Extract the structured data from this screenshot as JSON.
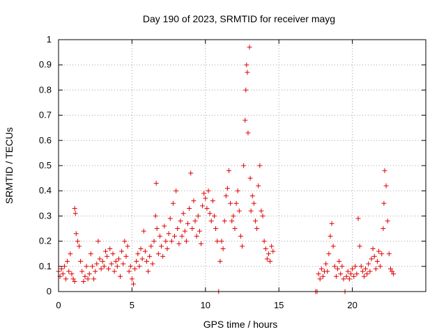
{
  "chart_data": {
    "type": "scatter",
    "title": "Day 190 of 2023, SRMTID for receiver mayg",
    "xlabel": "GPS time / hours",
    "ylabel": "SRMTID / TECUs",
    "xlim": [
      0,
      25
    ],
    "ylim": [
      0,
      1
    ],
    "xticks": [
      0,
      5,
      10,
      15,
      20
    ],
    "xtick_labels": [
      "0",
      "5",
      "10",
      "15",
      "20"
    ],
    "yticks": [
      0,
      0.1,
      0.2,
      0.3,
      0.4,
      0.5,
      0.6,
      0.7,
      0.8,
      0.9,
      1
    ],
    "ytick_labels": [
      "0",
      "0.1",
      "0.2",
      "0.3",
      "0.4",
      "0.5",
      "0.6",
      "0.7",
      "0.8",
      "0.9",
      "1"
    ],
    "grid": true,
    "marker": "+",
    "color": "#e00000",
    "series": [
      {
        "name": "SRMTID",
        "points": [
          [
            0.0,
            0.08
          ],
          [
            0.1,
            0.06
          ],
          [
            0.2,
            0.09
          ],
          [
            0.3,
            0.07
          ],
          [
            0.4,
            0.1
          ],
          [
            0.5,
            0.05
          ],
          [
            0.6,
            0.12
          ],
          [
            0.7,
            0.08
          ],
          [
            0.8,
            0.15
          ],
          [
            0.9,
            0.07
          ],
          [
            1.0,
            0.05
          ],
          [
            1.1,
            0.04
          ],
          [
            1.1,
            0.33
          ],
          [
            1.15,
            0.31
          ],
          [
            1.2,
            0.23
          ],
          [
            1.3,
            0.2
          ],
          [
            1.4,
            0.18
          ],
          [
            1.5,
            0.12
          ],
          [
            1.6,
            0.08
          ],
          [
            1.7,
            0.04
          ],
          [
            1.8,
            0.06
          ],
          [
            1.9,
            0.1
          ],
          [
            2.0,
            0.05
          ],
          [
            2.1,
            0.07
          ],
          [
            2.2,
            0.15
          ],
          [
            2.3,
            0.1
          ],
          [
            2.4,
            0.05
          ],
          [
            2.5,
            0.08
          ],
          [
            2.6,
            0.11
          ],
          [
            2.7,
            0.2
          ],
          [
            2.8,
            0.13
          ],
          [
            2.9,
            0.09
          ],
          [
            3.0,
            0.12
          ],
          [
            3.1,
            0.1
          ],
          [
            3.2,
            0.16
          ],
          [
            3.3,
            0.14
          ],
          [
            3.4,
            0.09
          ],
          [
            3.5,
            0.17
          ],
          [
            3.6,
            0.11
          ],
          [
            3.7,
            0.15
          ],
          [
            3.8,
            0.08
          ],
          [
            3.9,
            0.12
          ],
          [
            4.0,
            0.1
          ],
          [
            4.1,
            0.13
          ],
          [
            4.2,
            0.06
          ],
          [
            4.3,
            0.16
          ],
          [
            4.4,
            0.11
          ],
          [
            4.5,
            0.2
          ],
          [
            4.6,
            0.14
          ],
          [
            4.7,
            0.18
          ],
          [
            4.8,
            0.08
          ],
          [
            4.9,
            0.1
          ],
          [
            5.0,
            0.05
          ],
          [
            5.1,
            0.03
          ],
          [
            5.2,
            0.09
          ],
          [
            5.3,
            0.12
          ],
          [
            5.4,
            0.15
          ],
          [
            5.5,
            0.1
          ],
          [
            5.6,
            0.17
          ],
          [
            5.7,
            0.13
          ],
          [
            5.8,
            0.24
          ],
          [
            5.9,
            0.16
          ],
          [
            6.0,
            0.12
          ],
          [
            6.1,
            0.08
          ],
          [
            6.2,
            0.14
          ],
          [
            6.3,
            0.18
          ],
          [
            6.4,
            0.11
          ],
          [
            6.5,
            0.2
          ],
          [
            6.6,
            0.3
          ],
          [
            6.65,
            0.43
          ],
          [
            6.7,
            0.25
          ],
          [
            6.8,
            0.15
          ],
          [
            6.9,
            0.22
          ],
          [
            7.0,
            0.18
          ],
          [
            7.1,
            0.14
          ],
          [
            7.2,
            0.26
          ],
          [
            7.3,
            0.2
          ],
          [
            7.4,
            0.17
          ],
          [
            7.5,
            0.23
          ],
          [
            7.6,
            0.29
          ],
          [
            7.7,
            0.2
          ],
          [
            7.8,
            0.35
          ],
          [
            7.9,
            0.22
          ],
          [
            8.0,
            0.4
          ],
          [
            8.1,
            0.25
          ],
          [
            8.2,
            0.19
          ],
          [
            8.3,
            0.28
          ],
          [
            8.4,
            0.22
          ],
          [
            8.5,
            0.31
          ],
          [
            8.6,
            0.24
          ],
          [
            8.7,
            0.2
          ],
          [
            8.8,
            0.27
          ],
          [
            8.9,
            0.33
          ],
          [
            9.0,
            0.47
          ],
          [
            9.1,
            0.25
          ],
          [
            9.2,
            0.36
          ],
          [
            9.3,
            0.28
          ],
          [
            9.4,
            0.22
          ],
          [
            9.5,
            0.3
          ],
          [
            9.6,
            0.24
          ],
          [
            9.7,
            0.19
          ],
          [
            9.8,
            0.34
          ],
          [
            9.9,
            0.39
          ],
          [
            10.0,
            0.37
          ],
          [
            10.1,
            0.33
          ],
          [
            10.2,
            0.4
          ],
          [
            10.3,
            0.31
          ],
          [
            10.4,
            0.28
          ],
          [
            10.5,
            0.36
          ],
          [
            10.6,
            0.3
          ],
          [
            10.7,
            0.25
          ],
          [
            10.8,
            0.2
          ],
          [
            10.9,
            0.0
          ],
          [
            11.0,
            0.12
          ],
          [
            11.1,
            0.2
          ],
          [
            11.2,
            0.17
          ],
          [
            11.3,
            0.28
          ],
          [
            11.4,
            0.38
          ],
          [
            11.5,
            0.41
          ],
          [
            11.6,
            0.48
          ],
          [
            11.7,
            0.35
          ],
          [
            11.8,
            0.28
          ],
          [
            11.9,
            0.3
          ],
          [
            12.0,
            0.25
          ],
          [
            12.1,
            0.35
          ],
          [
            12.2,
            0.4
          ],
          [
            12.3,
            0.32
          ],
          [
            12.4,
            0.22
          ],
          [
            12.5,
            0.18
          ],
          [
            12.6,
            0.5
          ],
          [
            12.7,
            0.68
          ],
          [
            12.75,
            0.8
          ],
          [
            12.8,
            0.9
          ],
          [
            12.85,
            0.87
          ],
          [
            12.9,
            0.63
          ],
          [
            13.0,
            0.97
          ],
          [
            13.05,
            0.45
          ],
          [
            13.1,
            0.32
          ],
          [
            13.2,
            0.38
          ],
          [
            13.3,
            0.35
          ],
          [
            13.4,
            0.28
          ],
          [
            13.5,
            0.25
          ],
          [
            13.6,
            0.42
          ],
          [
            13.7,
            0.5
          ],
          [
            13.8,
            0.32
          ],
          [
            13.9,
            0.3
          ],
          [
            14.0,
            0.2
          ],
          [
            14.1,
            0.17
          ],
          [
            14.2,
            0.13
          ],
          [
            14.3,
            0.15
          ],
          [
            14.4,
            0.12
          ],
          [
            14.5,
            0.18
          ],
          [
            14.6,
            0.16
          ],
          [
            17.5,
            0.0
          ],
          [
            17.6,
            0.0
          ],
          [
            17.7,
            0.07
          ],
          [
            17.8,
            0.05
          ],
          [
            17.9,
            0.09
          ],
          [
            18.0,
            0.06
          ],
          [
            18.1,
            0.08
          ],
          [
            18.2,
            0.11
          ],
          [
            18.3,
            0.08
          ],
          [
            18.4,
            0.15
          ],
          [
            18.5,
            0.22
          ],
          [
            18.6,
            0.27
          ],
          [
            18.7,
            0.18
          ],
          [
            18.8,
            0.1
          ],
          [
            18.9,
            0.06
          ],
          [
            19.0,
            0.09
          ],
          [
            19.1,
            0.12
          ],
          [
            19.2,
            0.07
          ],
          [
            19.3,
            0.1
          ],
          [
            19.4,
            0.05
          ],
          [
            19.5,
            0.0
          ],
          [
            19.6,
            0.06
          ],
          [
            19.7,
            0.08
          ],
          [
            19.8,
            0.05
          ],
          [
            19.9,
            0.07
          ],
          [
            20.0,
            0.09
          ],
          [
            20.1,
            0.06
          ],
          [
            20.2,
            0.1
          ],
          [
            20.3,
            0.07
          ],
          [
            20.4,
            0.29
          ],
          [
            20.5,
            0.18
          ],
          [
            20.6,
            0.1
          ],
          [
            20.7,
            0.08
          ],
          [
            20.8,
            0.06
          ],
          [
            20.9,
            0.09
          ],
          [
            21.0,
            0.07
          ],
          [
            21.1,
            0.11
          ],
          [
            21.2,
            0.08
          ],
          [
            21.3,
            0.13
          ],
          [
            21.4,
            0.17
          ],
          [
            21.5,
            0.14
          ],
          [
            21.6,
            0.09
          ],
          [
            21.7,
            0.12
          ],
          [
            21.8,
            0.16
          ],
          [
            21.9,
            0.1
          ],
          [
            22.0,
            0.15
          ],
          [
            22.1,
            0.25
          ],
          [
            22.15,
            0.35
          ],
          [
            22.2,
            0.48
          ],
          [
            22.3,
            0.42
          ],
          [
            22.4,
            0.28
          ],
          [
            22.5,
            0.15
          ],
          [
            22.6,
            0.09
          ],
          [
            22.7,
            0.08
          ],
          [
            22.8,
            0.07
          ]
        ]
      }
    ]
  }
}
